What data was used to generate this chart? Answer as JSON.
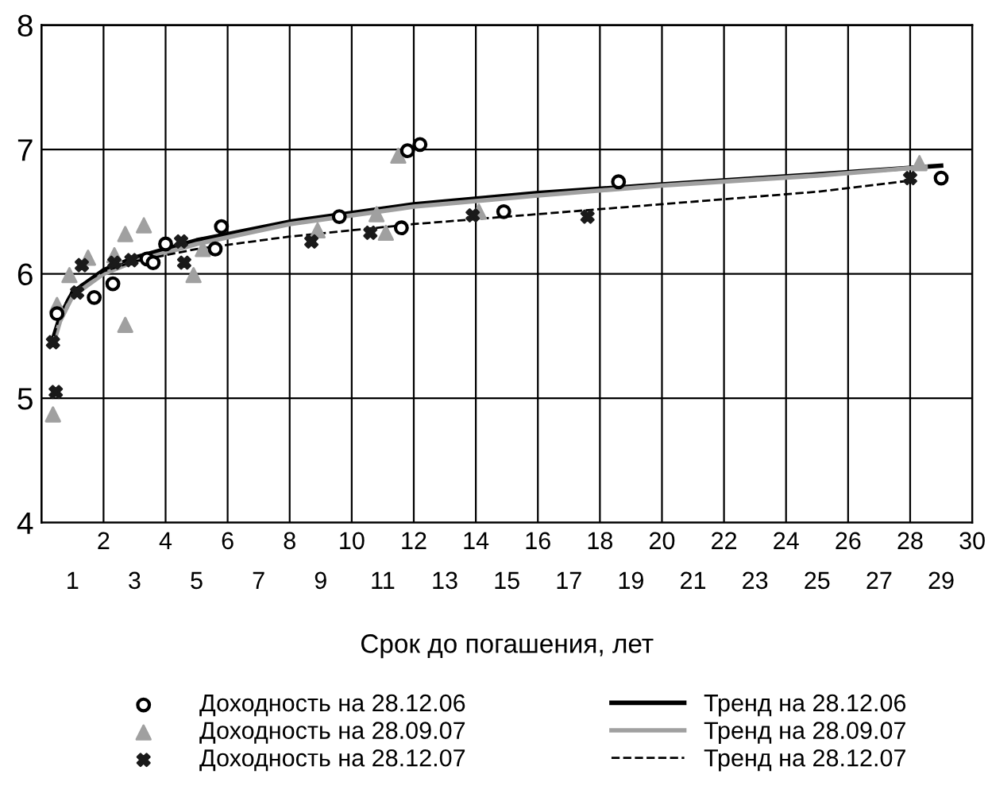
{
  "chart_data": {
    "type": "scatter",
    "xlabel": "Срок до погашения, лет",
    "xlim": [
      0,
      30
    ],
    "ylim": [
      4,
      8
    ],
    "xticks": [
      2,
      4,
      6,
      8,
      10,
      12,
      14,
      16,
      18,
      20,
      22,
      24,
      26,
      28,
      30
    ],
    "x2lim": [
      0,
      30
    ],
    "x2ticks": [
      1,
      3,
      5,
      7,
      9,
      11,
      13,
      15,
      17,
      19,
      21,
      23,
      25,
      27,
      29
    ],
    "yticks": [
      4,
      5,
      6,
      7,
      8
    ],
    "grid": true,
    "legend": "bottom",
    "series": [
      {
        "name": "Доходность на 28.12.06",
        "color": "#000000",
        "marker": "circle",
        "x": [
          0.5,
          1.7,
          2.3,
          3.4,
          3.6,
          4.0,
          5.6,
          5.8,
          9.6,
          11.6,
          11.8,
          12.2,
          14.9,
          18.6,
          29.0
        ],
        "values": [
          5.68,
          5.81,
          5.92,
          6.12,
          6.09,
          6.24,
          6.2,
          6.38,
          6.46,
          6.37,
          6.99,
          7.04,
          6.5,
          6.74,
          6.77
        ]
      },
      {
        "name": "Доходность на 28.09.07",
        "color": "#a0a0a0",
        "marker": "triangle",
        "x": [
          0.37,
          0.5,
          0.9,
          1.5,
          2.35,
          2.7,
          2.7,
          3.3,
          4.9,
          5.2,
          8.9,
          10.8,
          11.1,
          11.5,
          14.1,
          28.3
        ],
        "values": [
          4.87,
          5.75,
          5.99,
          6.13,
          6.15,
          6.32,
          5.59,
          6.39,
          5.99,
          6.2,
          6.35,
          6.48,
          6.33,
          6.95,
          6.5,
          6.89
        ]
      },
      {
        "name": "Доходность на 28.12.07",
        "color": "#1a1a1a",
        "marker": "cross",
        "x": [
          0.37,
          0.46,
          1.15,
          1.3,
          2.35,
          2.9,
          4.5,
          4.6,
          8.7,
          10.6,
          13.9,
          17.6,
          28.0
        ],
        "values": [
          5.45,
          5.05,
          5.85,
          6.07,
          6.09,
          6.11,
          6.26,
          6.09,
          6.26,
          6.33,
          6.47,
          6.46,
          6.77
        ]
      },
      {
        "name": "Тренд на 28.12.06",
        "type": "line",
        "color": "#000000",
        "line_style": "solid",
        "x": [
          0.4,
          0.6,
          1,
          2,
          3,
          5,
          8,
          12,
          16,
          20,
          25,
          29
        ],
        "values": [
          5.5,
          5.66,
          5.85,
          6.03,
          6.13,
          6.27,
          6.42,
          6.56,
          6.65,
          6.72,
          6.8,
          6.87
        ]
      },
      {
        "name": "Тренд на 28.09.07",
        "type": "line",
        "color": "#a0a0a0",
        "line_style": "solid",
        "x": [
          0.4,
          0.6,
          1,
          2,
          3,
          5,
          8,
          12,
          16,
          20,
          25,
          28.5
        ],
        "values": [
          5.45,
          5.62,
          5.82,
          6.0,
          6.1,
          6.24,
          6.4,
          6.54,
          6.63,
          6.71,
          6.79,
          6.86
        ]
      },
      {
        "name": "Тренд на 28.12.07",
        "type": "line",
        "color": "#000000",
        "line_style": "dashed",
        "x": [
          0.4,
          0.6,
          1,
          2,
          3,
          5,
          8,
          12,
          16,
          20,
          25,
          28
        ],
        "values": [
          5.5,
          5.68,
          5.87,
          6.02,
          6.1,
          6.2,
          6.3,
          6.4,
          6.48,
          6.56,
          6.66,
          6.75
        ]
      }
    ]
  }
}
